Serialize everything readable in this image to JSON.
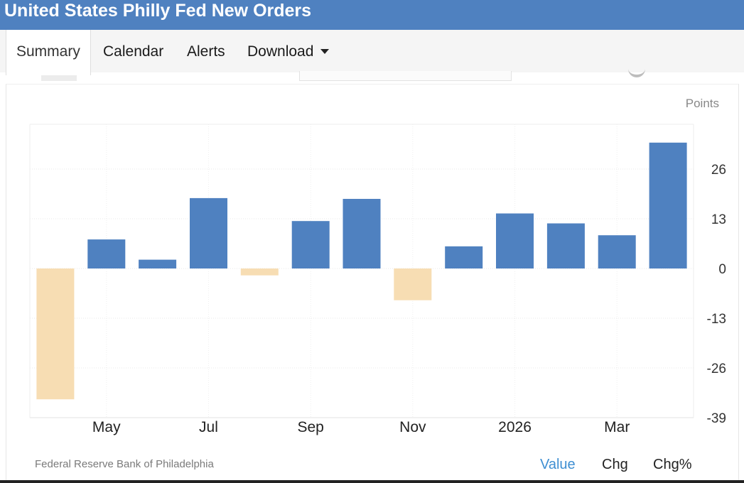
{
  "page": {
    "title": "United States Philly Fed New Orders"
  },
  "tabs": [
    {
      "label": "Summary",
      "active": true
    },
    {
      "label": "Calendar",
      "active": false
    },
    {
      "label": "Alerts",
      "active": false
    },
    {
      "label": "Download",
      "active": false,
      "dropdown": true
    }
  ],
  "chart_data": {
    "type": "bar",
    "unit_label": "Points",
    "x": [
      "2025-04",
      "2025-05",
      "2025-06",
      "2025-07",
      "2025-08",
      "2025-09",
      "2025-10",
      "2025-11",
      "2025-12",
      "2026-01",
      "2026-02",
      "2026-03",
      "2026-04"
    ],
    "x_tick_labels": [
      {
        "x": "2025-05",
        "label": "May"
      },
      {
        "x": "2025-07",
        "label": "Jul"
      },
      {
        "x": "2025-09",
        "label": "Sep"
      },
      {
        "x": "2025-11",
        "label": "Nov"
      },
      {
        "x": "2026-01",
        "label": "2026"
      },
      {
        "x": "2026-03",
        "label": "Mar"
      }
    ],
    "values": [
      -34.2,
      7.6,
      2.3,
      18.4,
      -1.8,
      12.4,
      18.2,
      -8.3,
      5.8,
      14.4,
      11.8,
      8.7,
      32.9
    ],
    "y_ticks": [
      26,
      13,
      0,
      -13,
      -26,
      -39
    ],
    "ylim": [
      -39,
      38
    ],
    "y_axis_side": "right",
    "grid": true,
    "colors": {
      "positive": "#4f81c0",
      "negative": "#f7ddb3"
    }
  },
  "source": "Federal Reserve Bank of Philadelphia",
  "view_toggles": [
    {
      "label": "Value",
      "active": true
    },
    {
      "label": "Chg",
      "active": false
    },
    {
      "label": "Chg%",
      "active": false
    }
  ]
}
